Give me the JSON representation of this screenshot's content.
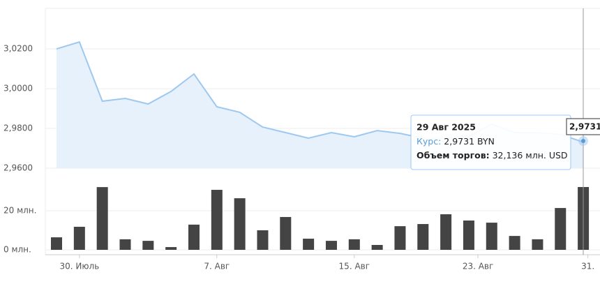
{
  "chart_data": [
    {
      "type": "area",
      "color": "#9ec8f0",
      "fill": "#e6f1fb",
      "categories": [
        null,
        null,
        null,
        null,
        null,
        null,
        null,
        null,
        null,
        null,
        null,
        null,
        null,
        null,
        null,
        null,
        null,
        null,
        null,
        null,
        null,
        null,
        null,
        null
      ],
      "values": [
        3.02,
        3.0235,
        2.9937,
        2.9951,
        2.9923,
        2.9986,
        3.0074,
        2.9909,
        2.9881,
        2.9807,
        2.9779,
        2.9751,
        2.9779,
        2.9758,
        2.9789,
        2.9775,
        2.9751,
        2.975,
        2.976,
        2.9821,
        2.9779,
        2.9779,
        2.977,
        2.9731
      ],
      "ylim": [
        2.96,
        3.0404
      ],
      "yticks": [
        {
          "value": 2.96,
          "label": "2,9600"
        },
        {
          "value": 2.98,
          "label": "2,9800"
        },
        {
          "value": 3.0,
          "label": "3,0000"
        },
        {
          "value": 3.02,
          "label": "3,0200"
        }
      ],
      "grid": true
    },
    {
      "type": "bar",
      "color": "#444444",
      "categories": [
        null,
        null,
        null,
        null,
        null,
        null,
        null,
        null,
        null,
        null,
        null,
        null,
        null,
        null,
        null,
        null,
        null,
        null,
        null,
        null,
        null,
        null,
        null,
        null
      ],
      "values": [
        6.4,
        11.8,
        32.1,
        5.4,
        4.6,
        1.4,
        12.9,
        30.7,
        26.4,
        10.0,
        16.8,
        5.7,
        4.6,
        5.4,
        2.5,
        12.1,
        13.2,
        18.2,
        15.0,
        13.9,
        7.1,
        5.4,
        21.4,
        32.136
      ],
      "ylim": [
        0,
        35
      ],
      "yticks": [
        {
          "value": 0,
          "label": "0 млн."
        },
        {
          "value": 20,
          "label": "20 млн."
        }
      ],
      "xticks": [
        {
          "value": 1,
          "label": "30. Июль"
        },
        {
          "value": 7,
          "label": "7. Авг"
        },
        {
          "value": 13,
          "label": "15. Авг"
        },
        {
          "value": 18.4,
          "label": "23. Авг"
        },
        {
          "value": 23.2,
          "label": "31."
        }
      ],
      "grid": true
    }
  ],
  "tooltip": {
    "date": "29 Авг 2025",
    "rate_label": "Курс:",
    "rate": "2,9731 BYN",
    "volume_label": "Объем торгов:",
    "volume": "32,136 млн. USD",
    "crosshair_label": "2,9731"
  }
}
